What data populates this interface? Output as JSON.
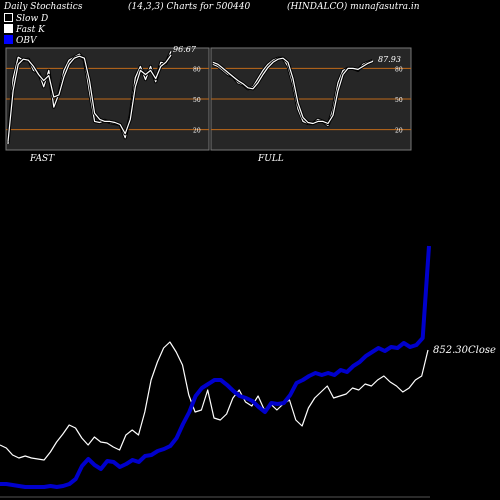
{
  "header": {
    "title": "Daily Stochastics",
    "params": "(14,3,3) Charts for 500440",
    "symbol": "(HINDALCO) munafasutra.in"
  },
  "legend": [
    {
      "label": "Slow  D",
      "icon": "white-outline-square"
    },
    {
      "label": "Fast K",
      "icon": "white-filled-square"
    },
    {
      "label": "OBV",
      "icon": "blue-filled-square"
    }
  ],
  "colors": {
    "background": "#000000",
    "panel": "#262626",
    "level_line": "#c06a1a",
    "stoch_line": "#ffffff",
    "obv_line": "#0000cc",
    "close_line": "#ffffff"
  },
  "chart_data": [
    {
      "type": "line",
      "panel_label": "FAST",
      "last_value_label": "96.67",
      "ylim": [
        0,
        100
      ],
      "levels": [
        20,
        50,
        80
      ],
      "level_labels": [
        "80",
        "50",
        "20"
      ],
      "series": [
        {
          "values": [
            6,
            70,
            91,
            88,
            89,
            78,
            76,
            62,
            78,
            42,
            55,
            78,
            88,
            91,
            94,
            88,
            57,
            28,
            27,
            29,
            27,
            26,
            25,
            12,
            34,
            71,
            82,
            69,
            82,
            67,
            86,
            85,
            96.67
          ]
        },
        {
          "values": [
            8,
            58,
            84,
            89,
            88,
            82,
            74,
            68,
            73,
            52,
            54,
            72,
            84,
            90,
            92,
            90,
            68,
            36,
            30,
            28,
            28,
            27,
            25,
            16,
            30,
            62,
            78,
            74,
            78,
            70,
            82,
            86,
            93
          ]
        }
      ]
    },
    {
      "type": "line",
      "panel_label": "FULL",
      "last_value_label": "87.93",
      "ylim": [
        0,
        100
      ],
      "levels": [
        20,
        50,
        80
      ],
      "level_labels": [
        "80",
        "50",
        "20"
      ],
      "series": [
        {
          "values": [
            84,
            82,
            78,
            74,
            72,
            66,
            64,
            60,
            62,
            70,
            78,
            84,
            88,
            90,
            90,
            82,
            64,
            40,
            28,
            26,
            26,
            30,
            28,
            24,
            40,
            66,
            78,
            80,
            80,
            78,
            84,
            86,
            87.93
          ]
        },
        {
          "values": [
            86,
            84,
            80,
            76,
            72,
            68,
            65,
            61,
            60,
            66,
            74,
            81,
            86,
            89,
            90,
            86,
            70,
            46,
            32,
            27,
            26,
            28,
            28,
            26,
            34,
            58,
            74,
            80,
            80,
            79,
            82,
            85,
            87
          ]
        }
      ]
    },
    {
      "type": "line",
      "close_label": "852.30Close",
      "series": [
        {
          "name": "OBV",
          "values": [
            484,
            484,
            485,
            486,
            487,
            487,
            487,
            487,
            486,
            487,
            486,
            484,
            479,
            466,
            459,
            465,
            469,
            461,
            462,
            467,
            464,
            460,
            462,
            456,
            455,
            451,
            449,
            446,
            438,
            424,
            412,
            396,
            388,
            384,
            380,
            380,
            385,
            391,
            396,
            398,
            401,
            407,
            412,
            403,
            404,
            403,
            395,
            383,
            380,
            376,
            373,
            375,
            373,
            375,
            370,
            372,
            366,
            362,
            356,
            352,
            348,
            351,
            347,
            348,
            343,
            347,
            345,
            338,
            246
          ]
        },
        {
          "name": "Close",
          "values": [
            445,
            448,
            455,
            458,
            456,
            458,
            459,
            460,
            452,
            442,
            434,
            425,
            428,
            438,
            445,
            437,
            442,
            443,
            447,
            450,
            435,
            430,
            435,
            412,
            380,
            362,
            348,
            342,
            352,
            365,
            395,
            412,
            410,
            390,
            418,
            420,
            414,
            398,
            390,
            402,
            406,
            396,
            410,
            404,
            410,
            404,
            400,
            420,
            426,
            408,
            398,
            392,
            386,
            398,
            396,
            394,
            388,
            390,
            384,
            386,
            380,
            376,
            382,
            386,
            392,
            388,
            380,
            376,
            350
          ]
        }
      ]
    }
  ]
}
